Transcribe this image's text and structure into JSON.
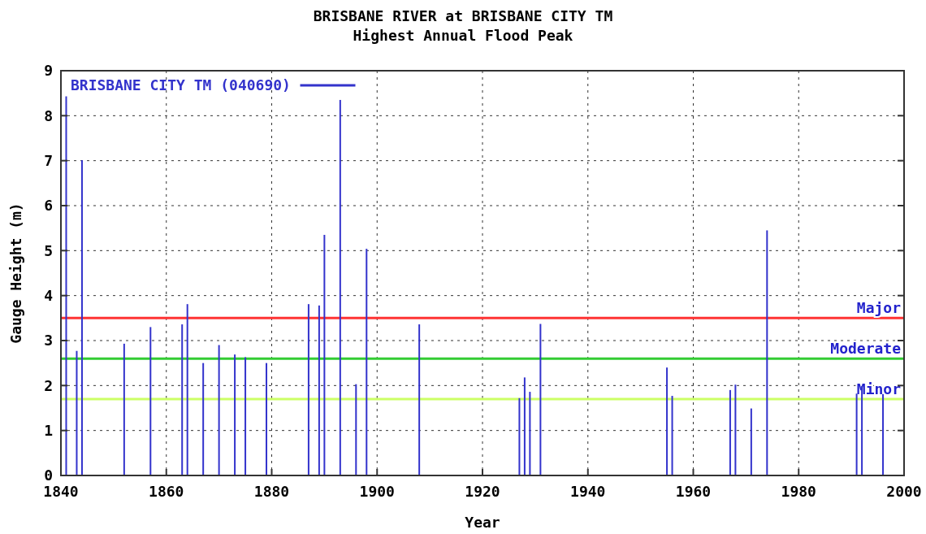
{
  "chart_data": {
    "type": "bar",
    "title": "BRISBANE RIVER at BRISBANE CITY TM",
    "subtitle": "Highest Annual Flood Peak",
    "xlabel": "Year",
    "ylabel": "Gauge Height (m)",
    "series": [
      {
        "name": "BRISBANE CITY TM (040690)",
        "color": "#3333cc",
        "x": [
          1841,
          1843,
          1844,
          1852,
          1857,
          1863,
          1864,
          1867,
          1870,
          1873,
          1875,
          1879,
          1887,
          1889,
          1890,
          1893,
          1896,
          1898,
          1908,
          1927,
          1928,
          1929,
          1931,
          1955,
          1956,
          1967,
          1968,
          1971,
          1974,
          1991,
          1992,
          1996
        ],
        "values": [
          8.43,
          2.77,
          7.01,
          2.93,
          3.3,
          3.36,
          3.81,
          2.5,
          2.9,
          2.69,
          2.63,
          2.5,
          3.81,
          3.78,
          5.35,
          8.35,
          2.03,
          5.04,
          3.36,
          1.72,
          2.18,
          1.86,
          3.37,
          2.4,
          1.77,
          1.9,
          2.02,
          1.49,
          5.45,
          1.82,
          1.99,
          1.81
        ]
      }
    ],
    "xlim": [
      1840,
      2000
    ],
    "xticks": [
      1840,
      1860,
      1880,
      1900,
      1920,
      1940,
      1960,
      1980,
      2000
    ],
    "ylim": [
      0,
      9
    ],
    "yticks": [
      0,
      1,
      2,
      3,
      4,
      5,
      6,
      7,
      8,
      9
    ],
    "ref_lines": [
      {
        "axis": "y",
        "value": 3.5,
        "label": "Major",
        "color": "#ff3333"
      },
      {
        "axis": "y",
        "value": 2.6,
        "label": "Moderate",
        "color": "#33cc33"
      },
      {
        "axis": "y",
        "value": 1.7,
        "label": "Minor",
        "color": "#ccff66"
      }
    ],
    "grid": true,
    "legend": "top left"
  }
}
